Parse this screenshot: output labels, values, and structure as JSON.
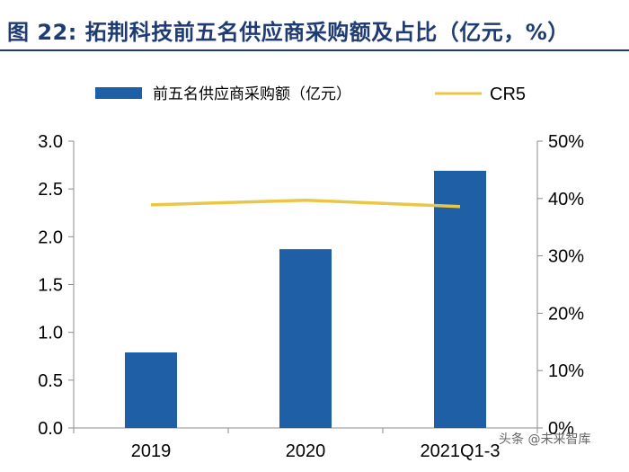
{
  "header": {
    "title": "图 22: 拓荆科技前五名供应商采购额及占比（亿元，%）"
  },
  "colors": {
    "bar": "#1f5fa6",
    "line": "#e8c746",
    "title": "#1f3b73"
  },
  "chart_data": {
    "type": "bar",
    "title": "图 22: 拓荆科技前五名供应商采购额及占比（亿元，%）",
    "categories": [
      "2019",
      "2020",
      "2021Q1-3"
    ],
    "series": [
      {
        "name": "前五名供应商采购额（亿元）",
        "type": "bar",
        "axis": "left",
        "values": [
          0.79,
          1.87,
          2.69
        ]
      },
      {
        "name": "CR5",
        "type": "line",
        "axis": "right",
        "values": [
          38.9,
          39.7,
          38.6
        ]
      }
    ],
    "y_left": {
      "range": [
        0,
        3.0
      ],
      "ticks": [
        "0.0",
        "0.5",
        "1.0",
        "1.5",
        "2.0",
        "2.5",
        "3.0"
      ]
    },
    "y_right": {
      "range": [
        0,
        50
      ],
      "ticks": [
        "0%",
        "10%",
        "20%",
        "30%",
        "40%",
        "50%"
      ]
    },
    "legend": [
      "前五名供应商采购额（亿元）",
      "CR5"
    ],
    "legend_position": "top"
  },
  "watermark": "头条 @未来智库"
}
